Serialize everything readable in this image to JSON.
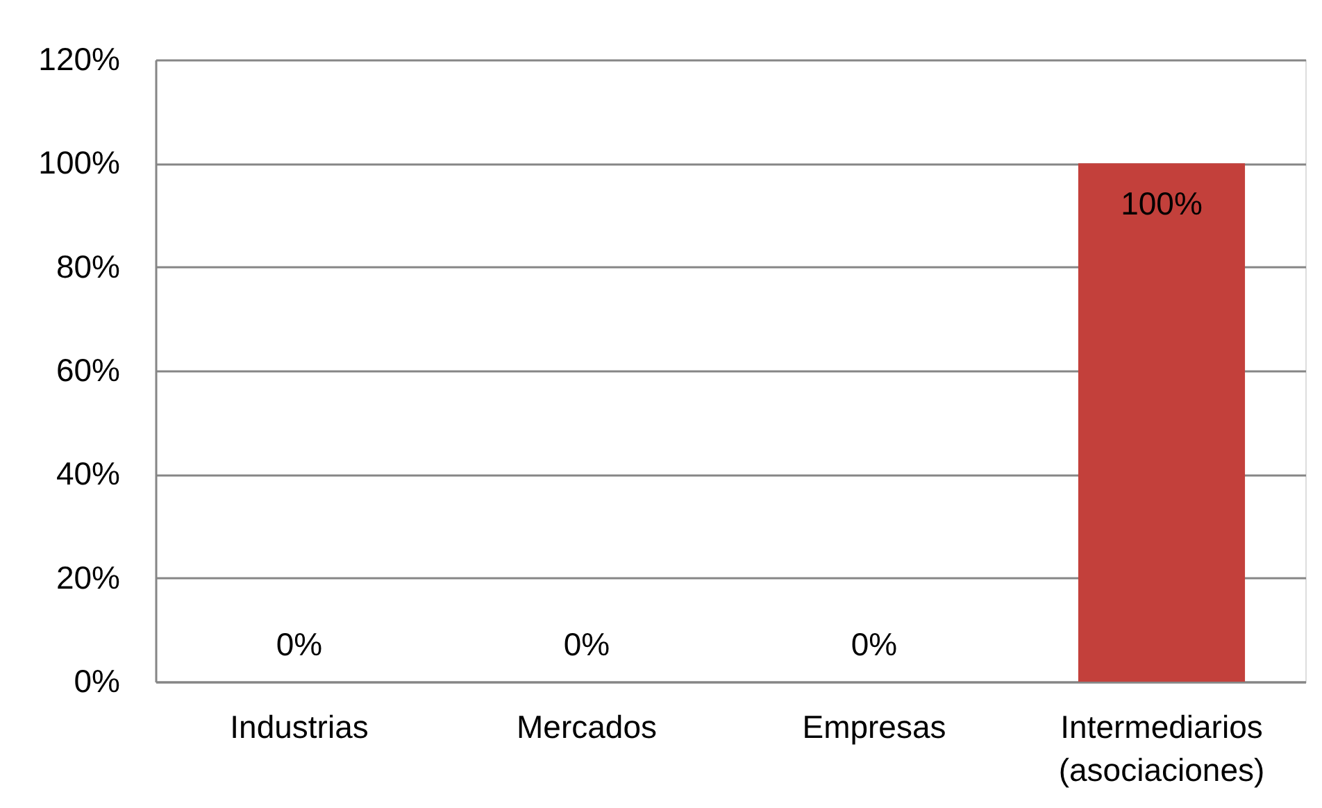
{
  "chart_data": {
    "type": "bar",
    "categories": [
      "Industrias",
      "Mercados",
      "Empresas",
      "Intermediarios (asociaciones)"
    ],
    "values": [
      0,
      0,
      0,
      100
    ],
    "color": "#c3403b",
    "ylim": [
      0,
      120
    ],
    "yticks": [
      {
        "value": 0,
        "label": "0%"
      },
      {
        "value": 20,
        "label": "20%"
      },
      {
        "value": 40,
        "label": "40%"
      },
      {
        "value": 60,
        "label": "60%"
      },
      {
        "value": 80,
        "label": "80%"
      },
      {
        "value": 100,
        "label": "100%"
      },
      {
        "value": 120,
        "label": "120%"
      }
    ],
    "grid": "y",
    "value_labels": [
      "0%",
      "0%",
      "0%",
      "100%"
    ]
  }
}
